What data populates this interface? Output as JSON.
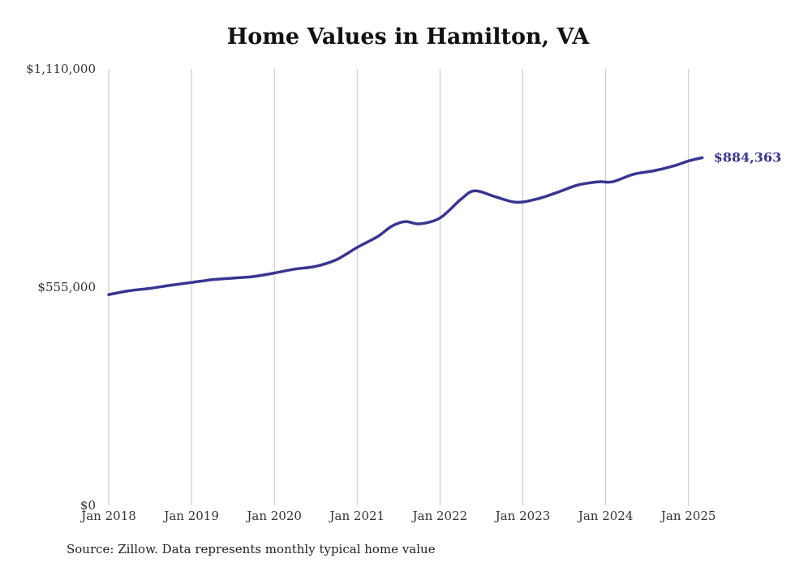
{
  "chart_data": {
    "type": "line",
    "title": "Home Values in Hamilton, VA",
    "xlabel": "",
    "ylabel": "",
    "ylim": [
      0,
      1110000
    ],
    "y_ticks": [
      {
        "value": 0,
        "label": "$0"
      },
      {
        "value": 555000,
        "label": "$555,000"
      },
      {
        "value": 1110000,
        "label": "$1,110,000"
      }
    ],
    "x_ticks": [
      "Jan 2018",
      "Jan 2019",
      "Jan 2020",
      "Jan 2021",
      "Jan 2022",
      "Jan 2023",
      "Jan 2024",
      "Jan 2025"
    ],
    "grid": "vertical",
    "line_color": "#3a3591",
    "series": [
      {
        "x": [
          "2018-01",
          "2018-04",
          "2018-07",
          "2018-10",
          "2019-01",
          "2019-04",
          "2019-07",
          "2019-10",
          "2020-01",
          "2020-04",
          "2020-07",
          "2020-10",
          "2021-01",
          "2021-04",
          "2021-06",
          "2021-08",
          "2021-10",
          "2022-01",
          "2022-04",
          "2022-06",
          "2022-09",
          "2022-12",
          "2023-03",
          "2023-06",
          "2023-09",
          "2023-12",
          "2024-02",
          "2024-05",
          "2024-08",
          "2024-11",
          "2025-01",
          "2025-03"
        ],
        "values": [
          536000,
          546000,
          552000,
          560000,
          567000,
          574000,
          578000,
          582000,
          591000,
          601000,
          608000,
          625000,
          656000,
          684000,
          710000,
          722000,
          716000,
          731000,
          778000,
          800000,
          785000,
          771000,
          779000,
          796000,
          815000,
          823000,
          823000,
          842000,
          851000,
          864000,
          876000,
          884363
        ]
      }
    ],
    "end_label": "$884,363"
  },
  "footer": {
    "source": "Source: Zillow. Data represents monthly typical home value"
  }
}
